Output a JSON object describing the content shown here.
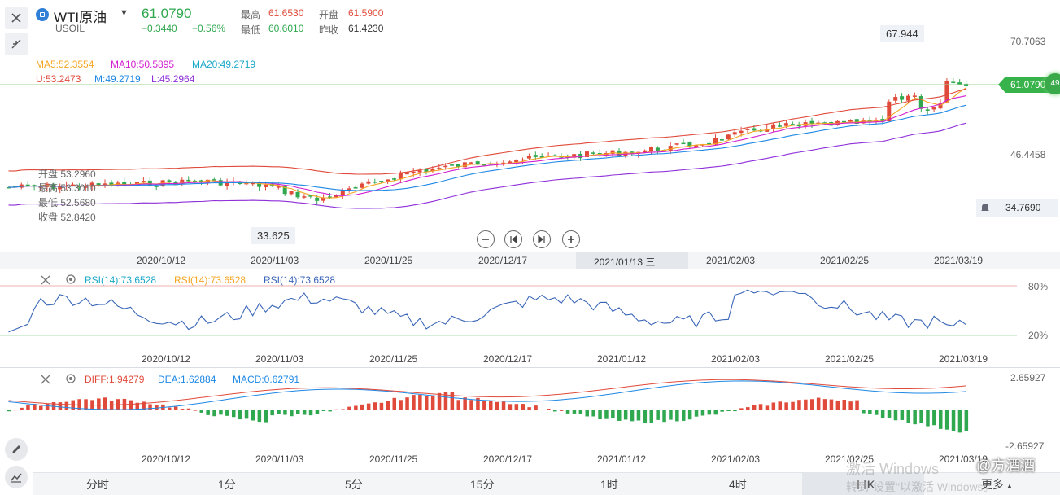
{
  "header": {
    "symbol_name": "WTI原油",
    "symbol_code": "USOIL",
    "price": "61.0790",
    "change": "−0.3440",
    "change_pct": "−0.56%",
    "high_label": "最高",
    "high": "61.6530",
    "open_label": "开盘",
    "open": "61.5900",
    "low_label": "最低",
    "low": "60.6010",
    "prevclose_label": "昨收",
    "prevclose": "61.4230"
  },
  "indicators": {
    "ma5": "MA5:52.3554",
    "ma10": "MA10:50.5895",
    "ma20": "MA20:49.2719",
    "boll_u": "U:53.2473",
    "boll_m": "M:49.2719",
    "boll_l": "L:45.2964"
  },
  "ohlc_tooltip": {
    "open": "开盘 53.2960",
    "high": "最高 53.3010",
    "low": "最低 52.5680",
    "close": "收盘 52.8420"
  },
  "price_axis": {
    "top": "70.7063",
    "mid": "46.4458",
    "low": "34.7690",
    "tag": "61.0790",
    "badge": "49"
  },
  "callouts": {
    "max": "67.944",
    "min": "33.625"
  },
  "dates_main": [
    "2020/10/12",
    "2020/11/03",
    "2020/11/25",
    "2020/12/17",
    "2021/02/03",
    "2021/02/25",
    "2021/03/19"
  ],
  "date_highlight": "2021/01/13 三",
  "dates_sub": [
    "2020/10/12",
    "2020/11/03",
    "2020/11/25",
    "2020/12/17",
    "2021/01/12",
    "2021/02/03",
    "2021/02/25",
    "2021/03/19"
  ],
  "rsi": {
    "l1": "RSI(14):73.6528",
    "l2": "RSI(14):73.6528",
    "l3": "RSI(14):73.6528",
    "axis80": "80%",
    "axis20": "20%"
  },
  "macd": {
    "diff": "DIFF:1.94279",
    "dea": "DEA:1.62884",
    "macd": "MACD:0.62791",
    "axis_top": "2.65927",
    "axis_bottom": "-2.65927"
  },
  "timeframes": [
    "分时",
    "1分",
    "5分",
    "15分",
    "1时",
    "4时",
    "日K",
    "更多"
  ],
  "watermark": {
    "line1": "激活 Windows",
    "line2": "转到\"设置\"以激活 Windows。",
    "brand": "@方酒酒"
  },
  "colors": {
    "up": "#e04a3a",
    "down": "#2fa84f",
    "ma5": "#f5a623",
    "ma10": "#d21fd2",
    "ma20": "#1e88e5",
    "boll": "#8e2fd8",
    "rsi": "#3a66b8"
  }
}
